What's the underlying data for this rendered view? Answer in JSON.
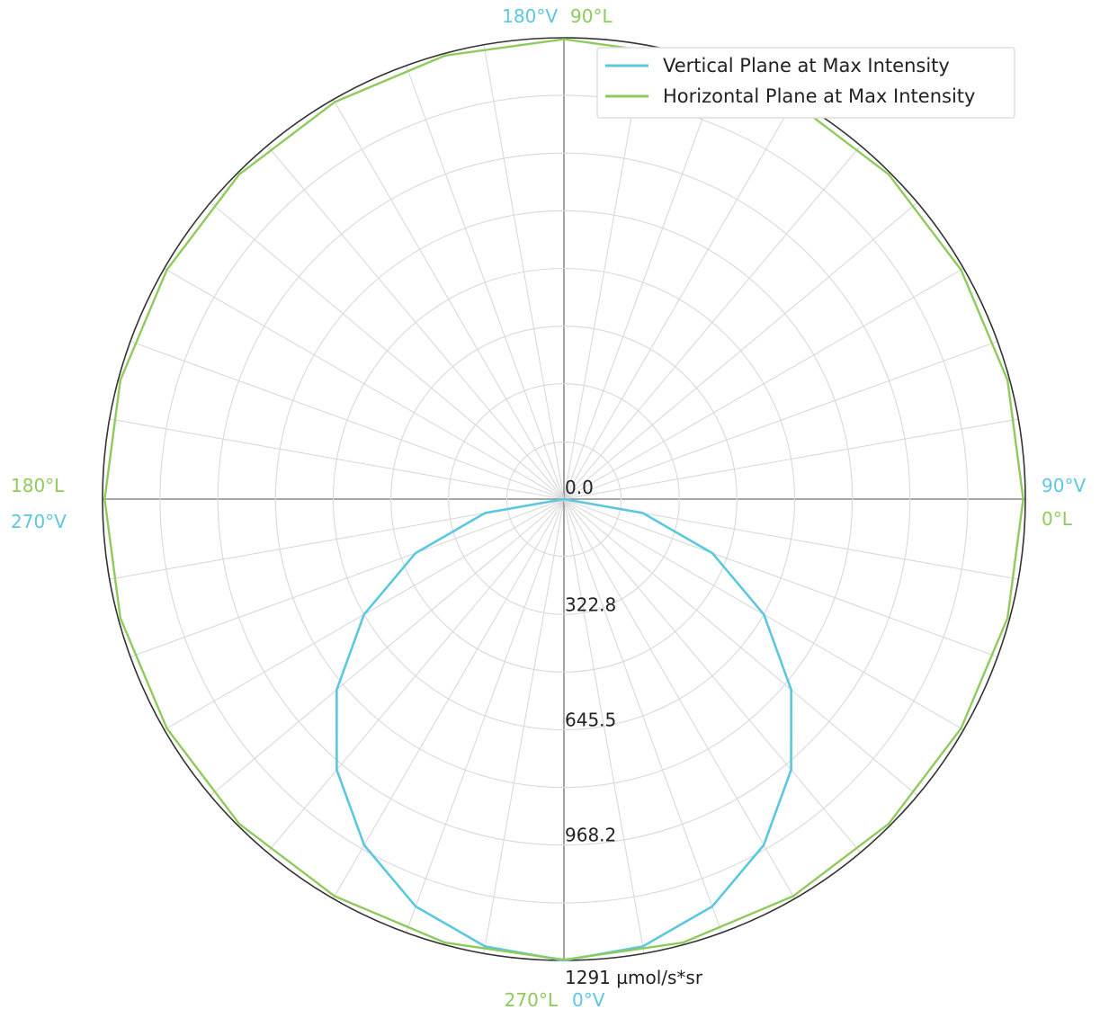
{
  "chart_data": {
    "type": "polar",
    "grid": true,
    "legend_placement": "top-right",
    "radial_axis": {
      "max": 1291,
      "ticks": [
        {
          "value": 0,
          "label": "0.0"
        },
        {
          "value": 322.8,
          "label": "322.8"
        },
        {
          "value": 645.5,
          "label": "645.5"
        },
        {
          "value": 968.2,
          "label": "968.2"
        },
        {
          "value": 1291,
          "label": "1291 µmol/s*sr"
        }
      ],
      "gridline_values": [
        160,
        322.8,
        484,
        645.5,
        807,
        968.2,
        1130,
        1291
      ]
    },
    "angular_grid_step_deg": 10,
    "angle_labels": {
      "vertical_plane": {
        "color": "#5bc8e0",
        "labels": [
          {
            "deg": 0,
            "text": "0°V"
          },
          {
            "deg": 90,
            "text": "90°V"
          },
          {
            "deg": 180,
            "text": "180°V"
          },
          {
            "deg": 270,
            "text": "270°V"
          }
        ]
      },
      "horizontal_plane": {
        "color": "#8ecb5c",
        "labels": [
          {
            "deg": 0,
            "text": "0°L"
          },
          {
            "deg": 90,
            "text": "90°L"
          },
          {
            "deg": 180,
            "text": "180°L"
          },
          {
            "deg": 270,
            "text": "270°L"
          }
        ]
      }
    },
    "series": [
      {
        "name": "Vertical Plane at Max Intensity",
        "color": "#5bc8e0",
        "angle_convention": "degrees from nadir (downward), counter-clockwise toward 90°V on the right",
        "angles_deg": [
          0,
          10,
          20,
          30,
          40,
          50,
          60,
          70,
          80,
          90,
          270,
          280,
          290,
          300,
          310,
          320,
          330,
          340,
          350,
          360
        ],
        "values": [
          1291,
          1271,
          1213,
          1118,
          989,
          830,
          646,
          442,
          224,
          0,
          0,
          224,
          442,
          646,
          830,
          989,
          1118,
          1213,
          1271,
          1291
        ]
      },
      {
        "name": "Horizontal Plane at Max Intensity",
        "color": "#8ecb5c",
        "angle_convention": "degrees with 0°L at right, 90°L at top, 180°L at left, 270°L at bottom",
        "angles_deg": [
          0,
          15,
          30,
          45,
          60,
          75,
          90,
          105,
          120,
          135,
          150,
          165,
          180,
          195,
          210,
          225,
          240,
          255,
          270,
          285,
          300,
          315,
          330,
          345,
          360
        ],
        "values": [
          1285,
          1285,
          1283,
          1285,
          1283,
          1285,
          1287,
          1285,
          1283,
          1285,
          1283,
          1285,
          1285,
          1285,
          1283,
          1285,
          1283,
          1285,
          1289,
          1285,
          1283,
          1285,
          1283,
          1285,
          1285
        ]
      }
    ]
  }
}
